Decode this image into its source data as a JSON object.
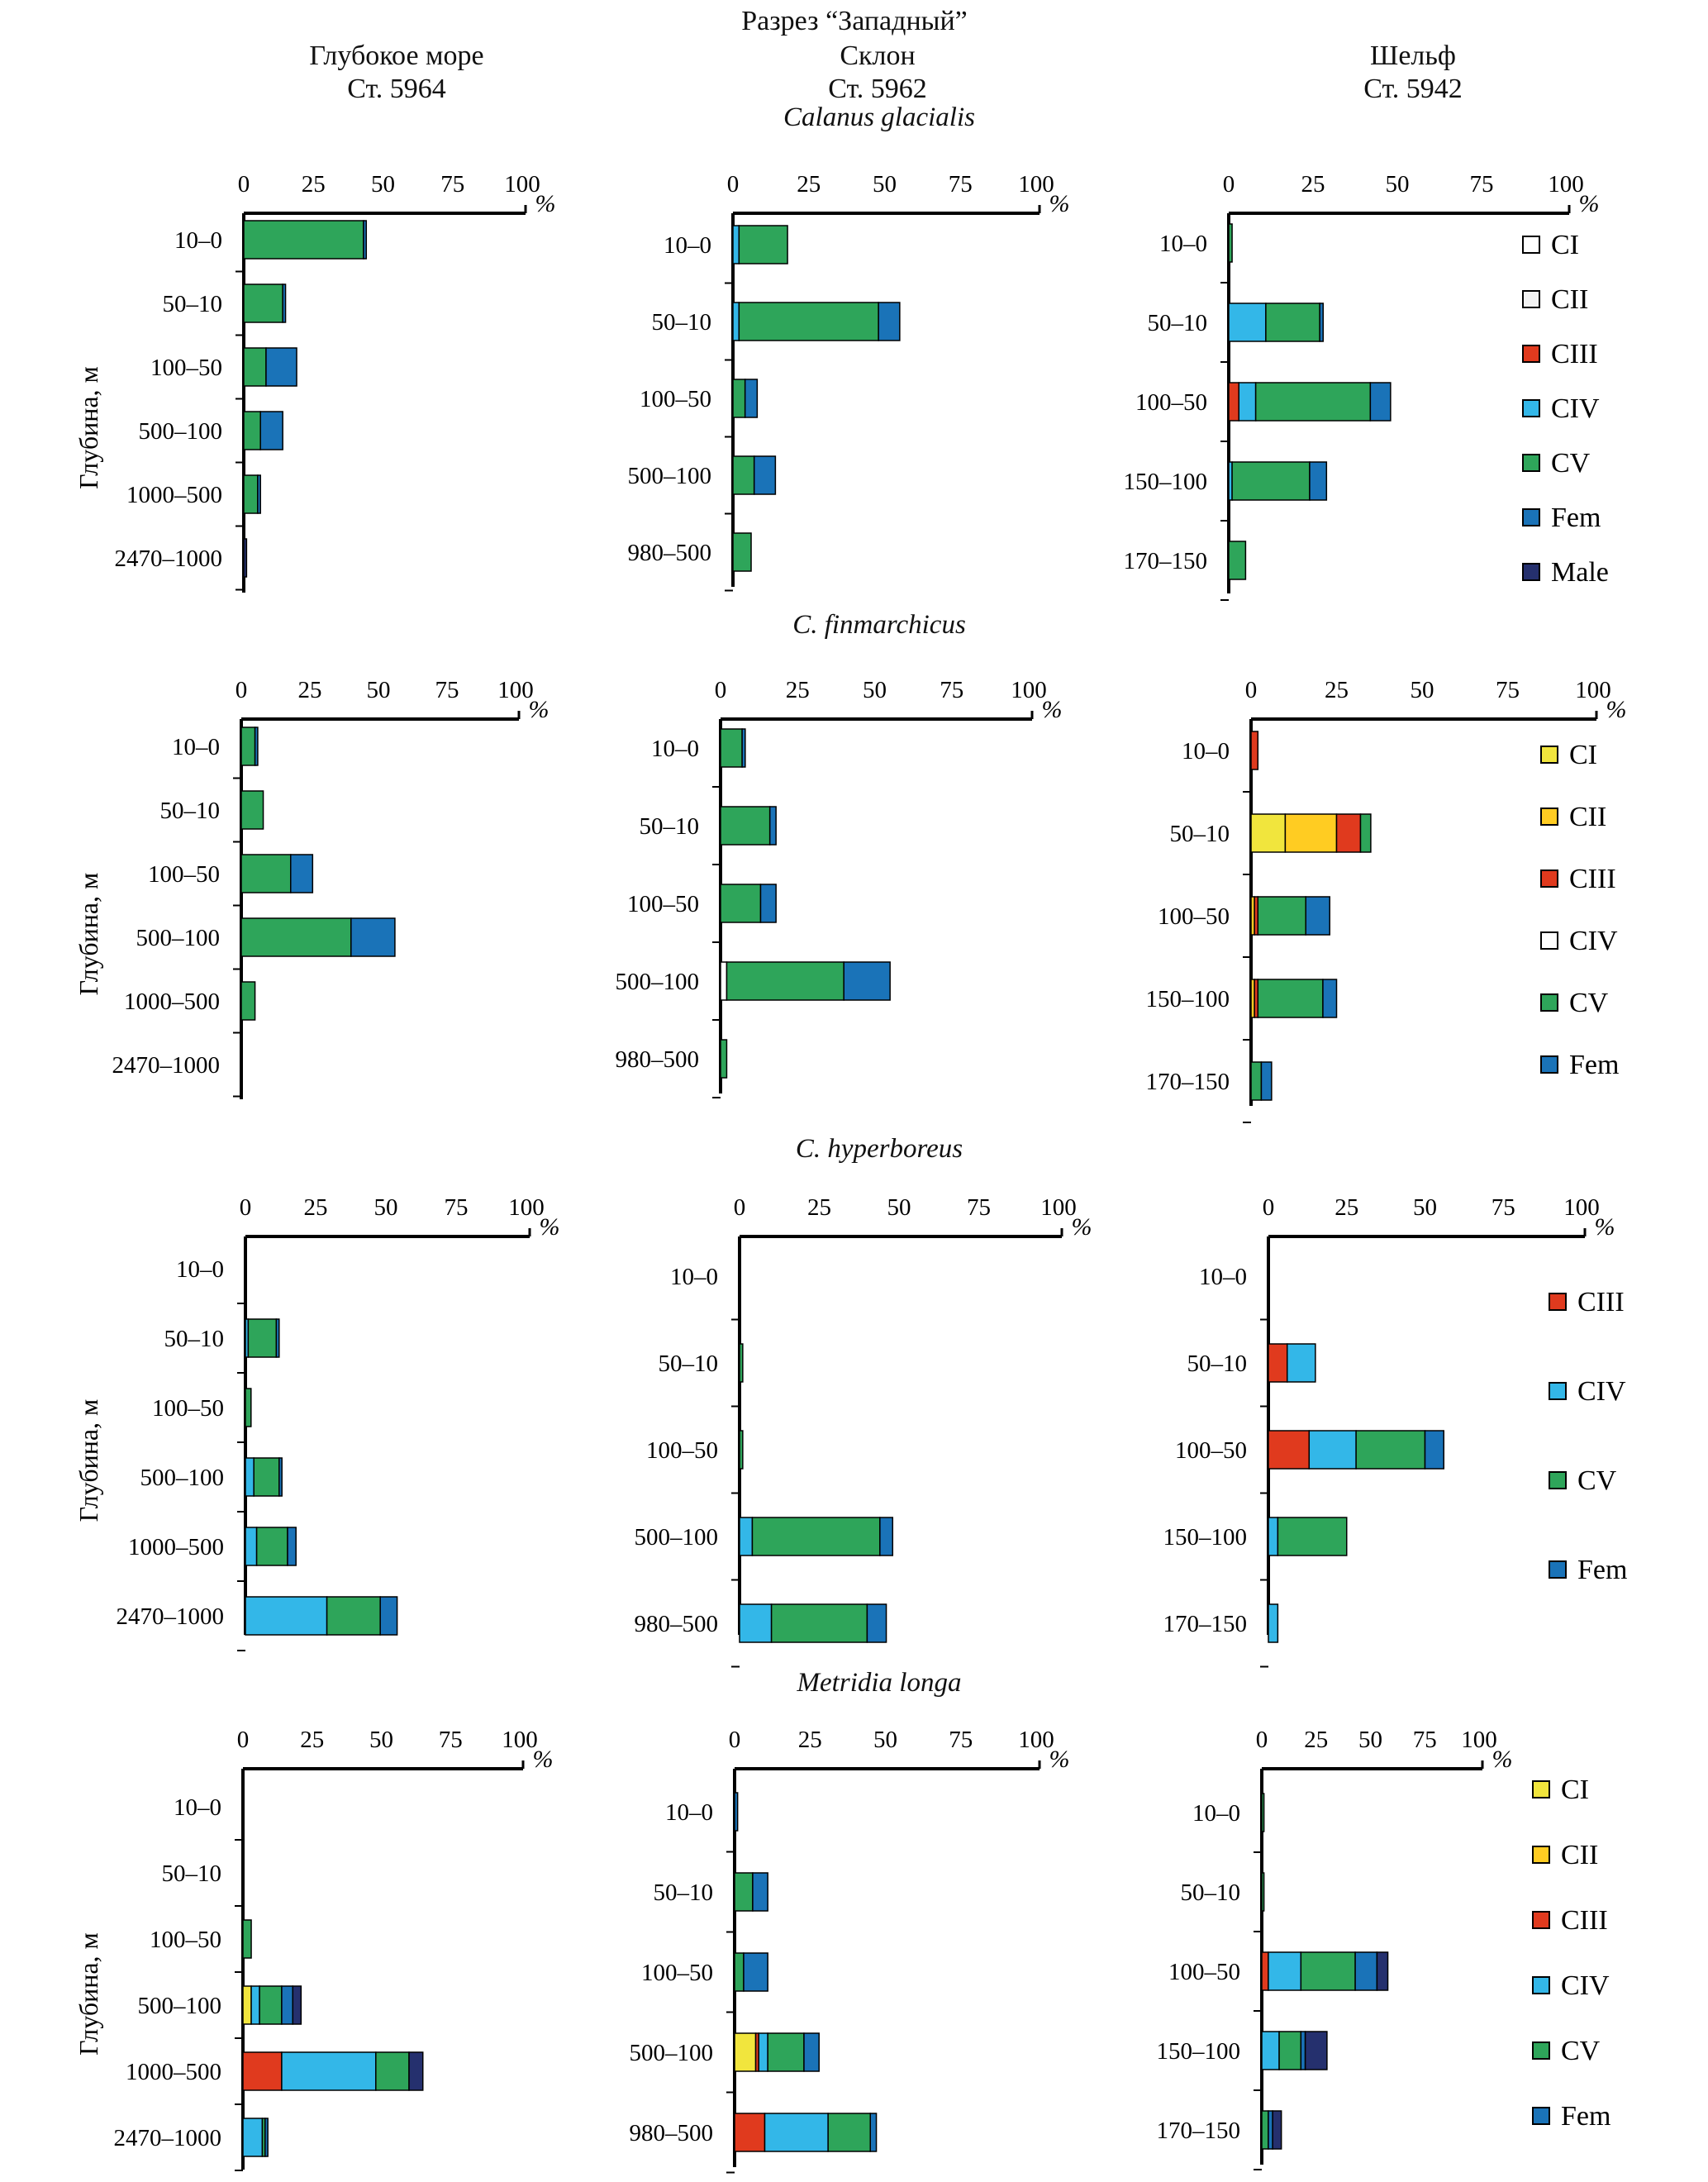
{
  "figure": {
    "title": "Разрез “Западный”",
    "columns": [
      {
        "name": "Глубокое море",
        "station": "Ст. 5964"
      },
      {
        "name": "Склон",
        "station": "Ст. 5962"
      },
      {
        "name": "Шельф",
        "station": "Ст. 5942"
      }
    ],
    "ylabel": "Глубина, м",
    "unit": "%",
    "ticks": [
      "0",
      "25",
      "50",
      "75",
      "100"
    ]
  },
  "colors": {
    "CI": "#f1e53d",
    "CII": "#ffcc22",
    "CIII": "#e03a1e",
    "CIV": "#33b7e8",
    "CV": "#2ea55a",
    "Fem": "#1a73b8",
    "Male": "#25306e",
    "CI_white": "#ffffff",
    "CII_white": "#f2f2f2"
  },
  "chart_data": [
    {
      "species": "Calanus glacialis",
      "legend": [
        {
          "label": "CI",
          "color": "#ffffff"
        },
        {
          "label": "CII",
          "color": "#f2f2f2"
        },
        {
          "label": "CIII",
          "color": "#e03a1e"
        },
        {
          "label": "CIV",
          "color": "#33b7e8"
        },
        {
          "label": "CV",
          "color": "#2ea55a"
        },
        {
          "label": "Fem",
          "color": "#1a73b8"
        },
        {
          "label": "Male",
          "color": "#25306e"
        }
      ],
      "panels": [
        {
          "type": "bar",
          "orientation": "horizontal",
          "stacked": true,
          "categories": [
            "10–0",
            "50–10",
            "100–50",
            "500–100",
            "1000–500",
            "2470–1000"
          ],
          "series": [
            {
              "name": "CV",
              "values": [
                43,
                14,
                8,
                6,
                5,
                0
              ],
              "color": "#2ea55a"
            },
            {
              "name": "Fem",
              "values": [
                1,
                1,
                11,
                8,
                1,
                0
              ],
              "color": "#1a73b8"
            },
            {
              "name": "Male",
              "values": [
                0,
                0,
                0,
                0,
                0,
                1
              ],
              "color": "#25306e"
            }
          ]
        },
        {
          "type": "bar",
          "orientation": "horizontal",
          "stacked": true,
          "categories": [
            "10–0",
            "50–10",
            "100–50",
            "500–100",
            "980–500"
          ],
          "series": [
            {
              "name": "CIV",
              "values": [
                2,
                2,
                0,
                0,
                0
              ],
              "color": "#33b7e8"
            },
            {
              "name": "CV",
              "values": [
                16,
                46,
                4,
                7,
                6
              ],
              "color": "#2ea55a"
            },
            {
              "name": "Fem",
              "values": [
                0,
                7,
                4,
                7,
                0
              ],
              "color": "#1a73b8"
            }
          ]
        },
        {
          "type": "bar",
          "orientation": "horizontal",
          "stacked": true,
          "categories": [
            "10–0",
            "50–10",
            "100–50",
            "150–100",
            "170–150"
          ],
          "series": [
            {
              "name": "CIII",
              "values": [
                0,
                0,
                3,
                0,
                0
              ],
              "color": "#e03a1e"
            },
            {
              "name": "CIV",
              "values": [
                0,
                11,
                5,
                1,
                0
              ],
              "color": "#33b7e8"
            },
            {
              "name": "CV",
              "values": [
                1,
                16,
                34,
                23,
                5
              ],
              "color": "#2ea55a"
            },
            {
              "name": "Fem",
              "values": [
                0,
                1,
                6,
                5,
                0
              ],
              "color": "#1a73b8"
            }
          ]
        }
      ]
    },
    {
      "species": "C. finmarchicus",
      "legend": [
        {
          "label": "CI",
          "color": "#f1e53d"
        },
        {
          "label": "CII",
          "color": "#ffcc22"
        },
        {
          "label": "CIII",
          "color": "#e03a1e"
        },
        {
          "label": "CIV",
          "color": "#ffffff"
        },
        {
          "label": "CV",
          "color": "#2ea55a"
        },
        {
          "label": "Fem",
          "color": "#1a73b8"
        }
      ],
      "panels": [
        {
          "type": "bar",
          "orientation": "horizontal",
          "stacked": true,
          "categories": [
            "10–0",
            "50–10",
            "100–50",
            "500–100",
            "1000–500",
            "2470–1000"
          ],
          "series": [
            {
              "name": "CV",
              "values": [
                5,
                8,
                18,
                40,
                5,
                0
              ],
              "color": "#2ea55a"
            },
            {
              "name": "Fem",
              "values": [
                1,
                0,
                8,
                16,
                0,
                0
              ],
              "color": "#1a73b8"
            }
          ]
        },
        {
          "type": "bar",
          "orientation": "horizontal",
          "stacked": true,
          "categories": [
            "10–0",
            "50–10",
            "100–50",
            "500–100",
            "980–500"
          ],
          "series": [
            {
              "name": "CIV",
              "values": [
                0,
                0,
                0,
                2,
                0
              ],
              "color": "#ffffff"
            },
            {
              "name": "CV",
              "values": [
                7,
                16,
                13,
                38,
                2
              ],
              "color": "#2ea55a"
            },
            {
              "name": "Fem",
              "values": [
                1,
                2,
                5,
                15,
                0
              ],
              "color": "#1a73b8"
            }
          ]
        },
        {
          "type": "bar",
          "orientation": "horizontal",
          "stacked": true,
          "categories": [
            "10–0",
            "50–10",
            "100–50",
            "150–100",
            "170–150"
          ],
          "series": [
            {
              "name": "CI",
              "values": [
                0,
                10,
                0,
                0,
                0
              ],
              "color": "#f1e53d"
            },
            {
              "name": "CII",
              "values": [
                0,
                15,
                1,
                1,
                0
              ],
              "color": "#ffcc22"
            },
            {
              "name": "CIII",
              "values": [
                2,
                7,
                1,
                1,
                0
              ],
              "color": "#e03a1e"
            },
            {
              "name": "CV",
              "values": [
                0,
                3,
                14,
                19,
                3
              ],
              "color": "#2ea55a"
            },
            {
              "name": "Fem",
              "values": [
                0,
                0,
                7,
                4,
                3
              ],
              "color": "#1a73b8"
            }
          ]
        }
      ]
    },
    {
      "species": "C. hyperboreus",
      "legend": [
        {
          "label": "CIII",
          "color": "#e03a1e"
        },
        {
          "label": "CIV",
          "color": "#33b7e8"
        },
        {
          "label": "CV",
          "color": "#2ea55a"
        },
        {
          "label": "Fem",
          "color": "#1a73b8"
        }
      ],
      "panels": [
        {
          "type": "bar",
          "orientation": "horizontal",
          "stacked": true,
          "categories": [
            "10–0",
            "50–10",
            "100–50",
            "500–100",
            "1000–500",
            "2470–1000"
          ],
          "series": [
            {
              "name": "CIV",
              "values": [
                0,
                1,
                0,
                3,
                4,
                29
              ],
              "color": "#33b7e8"
            },
            {
              "name": "CV",
              "values": [
                0,
                10,
                2,
                9,
                11,
                19
              ],
              "color": "#2ea55a"
            },
            {
              "name": "Fem",
              "values": [
                0,
                1,
                0,
                1,
                3,
                6
              ],
              "color": "#1a73b8"
            }
          ]
        },
        {
          "type": "bar",
          "orientation": "horizontal",
          "stacked": true,
          "categories": [
            "10–0",
            "50–10",
            "100–50",
            "500–100",
            "980–500"
          ],
          "series": [
            {
              "name": "CIV",
              "values": [
                0,
                0,
                0,
                4,
                10
              ],
              "color": "#33b7e8"
            },
            {
              "name": "CV",
              "values": [
                0,
                1,
                1,
                40,
                30
              ],
              "color": "#2ea55a"
            },
            {
              "name": "Fem",
              "values": [
                0,
                0,
                0,
                4,
                6
              ],
              "color": "#1a73b8"
            }
          ]
        },
        {
          "type": "bar",
          "orientation": "horizontal",
          "stacked": true,
          "categories": [
            "10–0",
            "50–10",
            "100–50",
            "150–100",
            "170–150"
          ],
          "series": [
            {
              "name": "CIII",
              "values": [
                0,
                6,
                13,
                0,
                0
              ],
              "color": "#e03a1e"
            },
            {
              "name": "CIV",
              "values": [
                0,
                9,
                15,
                3,
                3
              ],
              "color": "#33b7e8"
            },
            {
              "name": "CV",
              "values": [
                0,
                0,
                22,
                22,
                0
              ],
              "color": "#2ea55a"
            },
            {
              "name": "Fem",
              "values": [
                0,
                0,
                6,
                0,
                0
              ],
              "color": "#1a73b8"
            }
          ]
        }
      ]
    },
    {
      "species": "Metridia longa",
      "legend": [
        {
          "label": "CI",
          "color": "#f1e53d"
        },
        {
          "label": "CII",
          "color": "#ffcc22"
        },
        {
          "label": "CIII",
          "color": "#e03a1e"
        },
        {
          "label": "CIV",
          "color": "#33b7e8"
        },
        {
          "label": "CV",
          "color": "#2ea55a"
        },
        {
          "label": "Fem",
          "color": "#1a73b8"
        }
      ],
      "panels": [
        {
          "type": "bar",
          "orientation": "horizontal",
          "stacked": true,
          "categories": [
            "10–0",
            "50–10",
            "100–50",
            "500–100",
            "1000–500",
            "2470–1000"
          ],
          "series": [
            {
              "name": "CI",
              "values": [
                0,
                0,
                0,
                3,
                0,
                0
              ],
              "color": "#f1e53d"
            },
            {
              "name": "CIII",
              "values": [
                0,
                0,
                0,
                0,
                14,
                0
              ],
              "color": "#e03a1e"
            },
            {
              "name": "CIV",
              "values": [
                0,
                0,
                0,
                3,
                34,
                7
              ],
              "color": "#33b7e8"
            },
            {
              "name": "CV",
              "values": [
                0,
                0,
                3,
                8,
                12,
                1
              ],
              "color": "#2ea55a"
            },
            {
              "name": "Fem",
              "values": [
                0,
                0,
                0,
                4,
                0,
                1
              ],
              "color": "#1a73b8"
            },
            {
              "name": "Male",
              "values": [
                0,
                0,
                0,
                3,
                5,
                0
              ],
              "color": "#25306e"
            }
          ]
        },
        {
          "type": "bar",
          "orientation": "horizontal",
          "stacked": true,
          "categories": [
            "10–0",
            "50–10",
            "100–50",
            "500–100",
            "980–500"
          ],
          "series": [
            {
              "name": "CI",
              "values": [
                0,
                0,
                0,
                7,
                0
              ],
              "color": "#f1e53d"
            },
            {
              "name": "CIII",
              "values": [
                0,
                0,
                0,
                1,
                10
              ],
              "color": "#e03a1e"
            },
            {
              "name": "CIV",
              "values": [
                0,
                0,
                0,
                3,
                21
              ],
              "color": "#33b7e8"
            },
            {
              "name": "CV",
              "values": [
                0,
                6,
                3,
                12,
                14
              ],
              "color": "#2ea55a"
            },
            {
              "name": "Fem",
              "values": [
                1,
                5,
                8,
                5,
                2
              ],
              "color": "#1a73b8"
            }
          ]
        },
        {
          "type": "bar",
          "orientation": "horizontal",
          "stacked": true,
          "categories": [
            "10–0",
            "50–10",
            "100–50",
            "150–100",
            "170–150"
          ],
          "series": [
            {
              "name": "CIII",
              "values": [
                0,
                0,
                3,
                0,
                0
              ],
              "color": "#e03a1e"
            },
            {
              "name": "CIV",
              "values": [
                0,
                0,
                15,
                8,
                0
              ],
              "color": "#33b7e8"
            },
            {
              "name": "CV",
              "values": [
                1,
                1,
                25,
                10,
                3
              ],
              "color": "#2ea55a"
            },
            {
              "name": "Fem",
              "values": [
                0,
                0,
                10,
                2,
                2
              ],
              "color": "#1a73b8"
            },
            {
              "name": "Male",
              "values": [
                0,
                0,
                5,
                10,
                4
              ],
              "color": "#25306e"
            }
          ]
        }
      ]
    }
  ]
}
